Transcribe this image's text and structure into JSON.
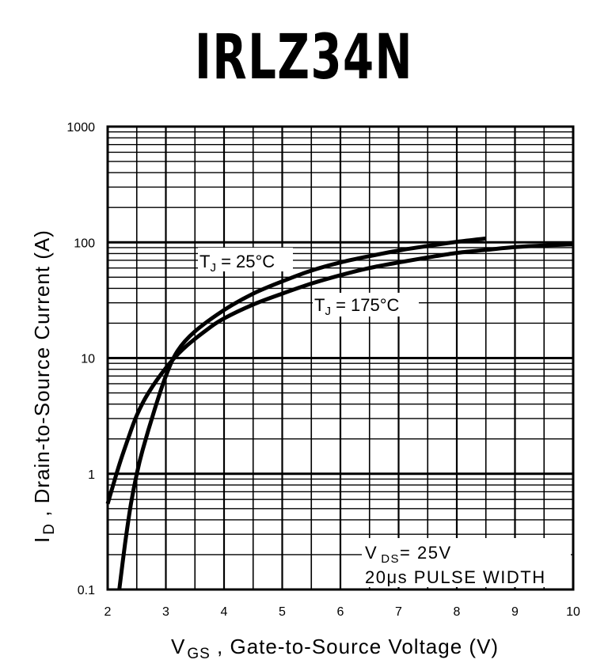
{
  "chart_data": {
    "type": "line",
    "title": "IRLZ34N",
    "xlabel": {
      "main": "V",
      "sub": "GS",
      "rest": " , Gate-to-Source Voltage (V)"
    },
    "ylabel": {
      "main": "I",
      "sub": "D",
      "rest": " , Drain-to-Source Current (A)"
    },
    "xlim": [
      2,
      10
    ],
    "ylim": [
      0.1,
      1000
    ],
    "yscale": "log",
    "grid": true,
    "xticks": [
      "2",
      "3",
      "4",
      "5",
      "6",
      "7",
      "8",
      "9",
      "10"
    ],
    "yticks": [
      "0.1",
      "1",
      "10",
      "100",
      "1000"
    ],
    "series": [
      {
        "name": "TJ = 25°C",
        "label": {
          "main": "T",
          "sub": "J",
          "rest": " = 25°C"
        },
        "x": [
          2.2,
          2.3,
          2.4,
          2.5,
          2.6,
          2.8,
          3.0,
          3.2,
          3.5,
          4.0,
          4.5,
          5.0,
          5.5,
          6.0,
          6.5,
          7.0,
          7.5,
          8.0,
          8.5
        ],
        "y": [
          0.1,
          0.25,
          0.55,
          1.0,
          1.6,
          3.5,
          7.0,
          11.5,
          17,
          26,
          36,
          46,
          57,
          67,
          76,
          85,
          93,
          101,
          108
        ]
      },
      {
        "name": "TJ = 175°C",
        "label": {
          "main": "T",
          "sub": "J",
          "rest": " = 175°C"
        },
        "x": [
          2.0,
          2.2,
          2.35,
          2.5,
          2.7,
          3.0,
          3.3,
          3.7,
          4.0,
          4.5,
          5.0,
          5.5,
          6.0,
          6.5,
          7.0,
          7.5,
          8.0,
          8.5,
          9.0,
          9.5,
          10.0
        ],
        "y": [
          0.55,
          1.2,
          2.0,
          3.2,
          5.0,
          8.2,
          12,
          17.5,
          22,
          29,
          36,
          44,
          52,
          60,
          67,
          74,
          81,
          86,
          91,
          94,
          96
        ]
      }
    ],
    "annotations": [
      {
        "line1": {
          "main": "V",
          "sub": "DS",
          "rest": "= 25V"
        },
        "line2": "20μs PULSE WIDTH"
      }
    ]
  }
}
